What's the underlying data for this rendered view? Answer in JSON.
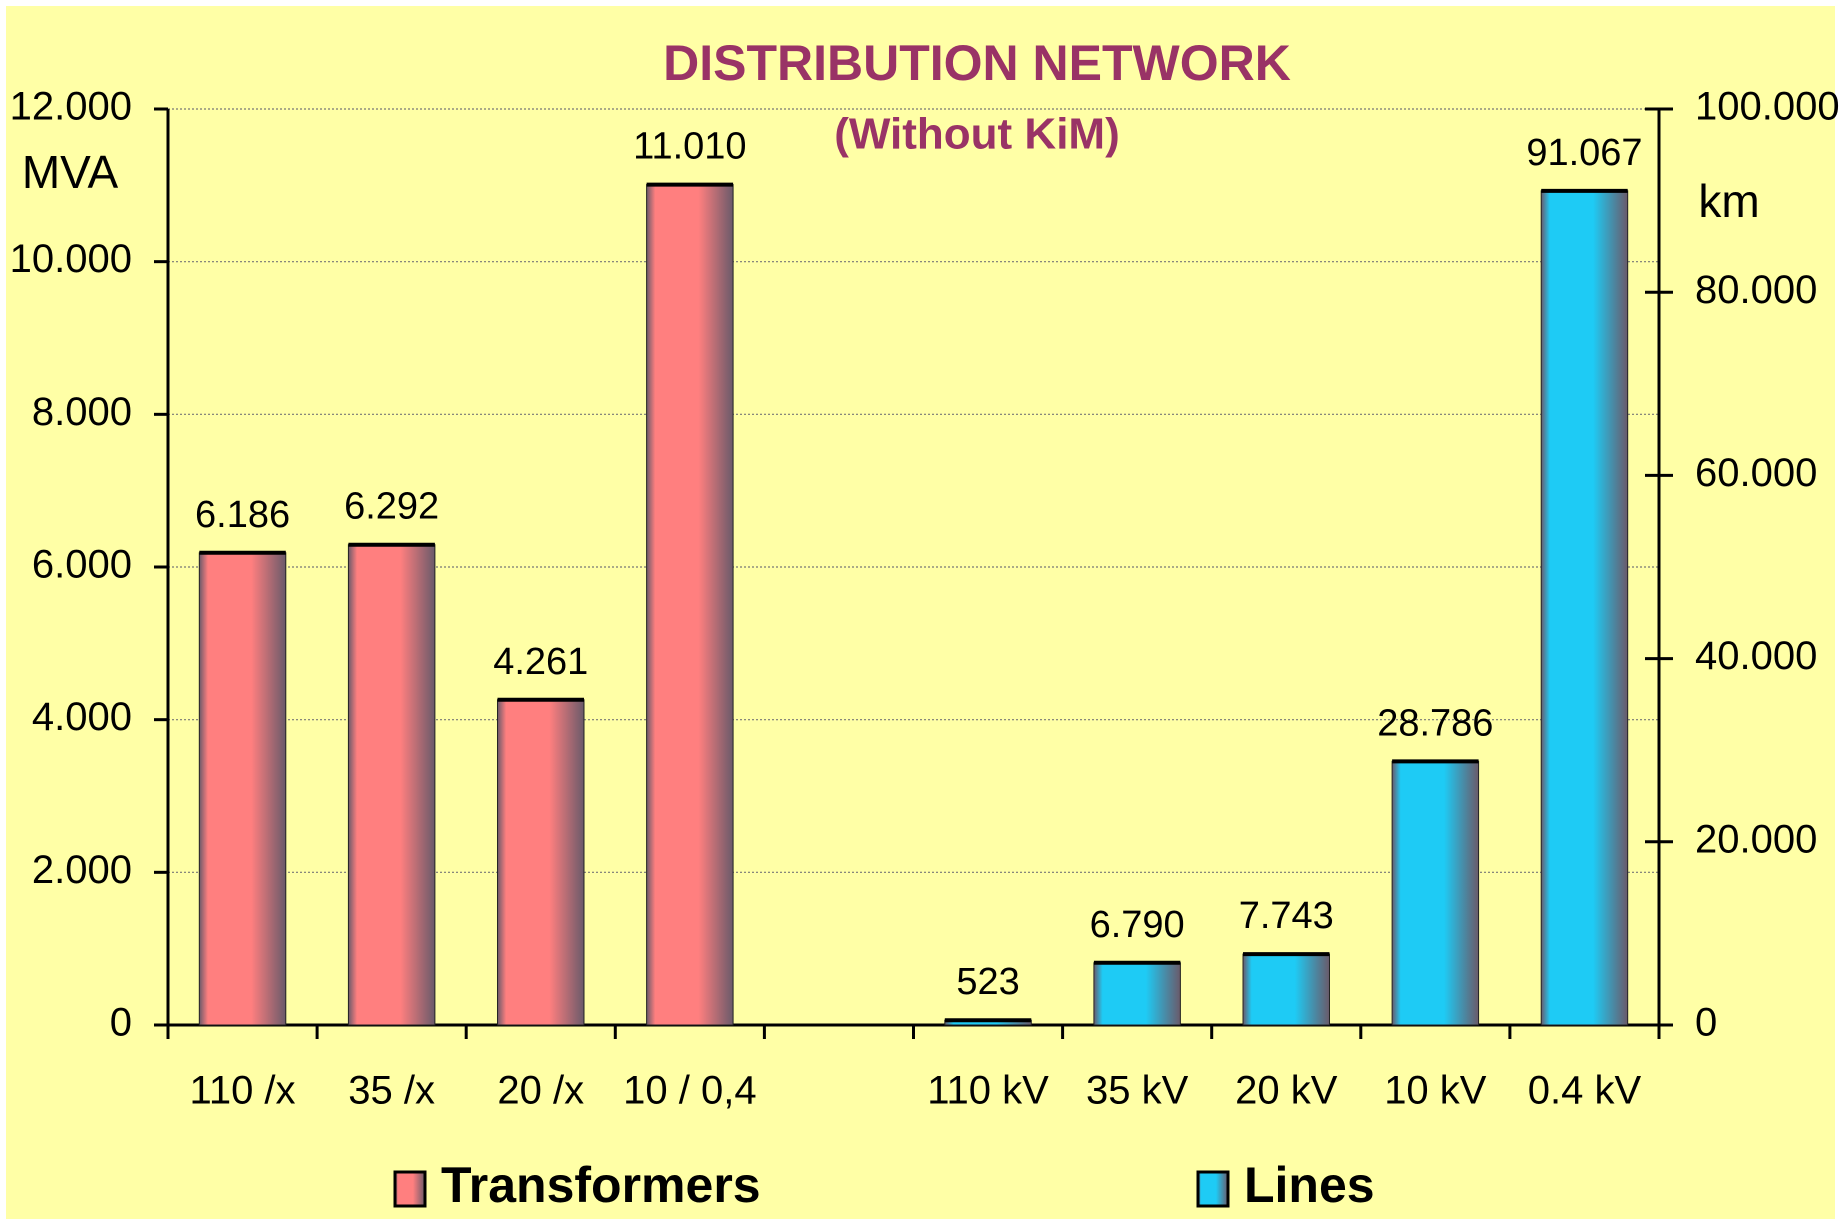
{
  "chart_data": {
    "type": "bar",
    "title": "DISTRIBUTION NETWORK",
    "subtitle": "(Without KiM)",
    "y_axis_label": "MVA",
    "y2_axis_label": "km",
    "categories": [
      "110 /x",
      "35 /x",
      "20 /x",
      "10 / 0,4",
      null,
      "110 kV",
      "35 kV",
      "20 kV",
      "10 kV",
      "0.4 kV"
    ],
    "series": [
      {
        "name": "Transformers",
        "color": "#ff7f7f",
        "axis": "y",
        "values": [
          6186,
          6292,
          4261,
          11010,
          null,
          null,
          null,
          null,
          null,
          null
        ],
        "value_labels": [
          "6.186",
          "6.292",
          "4.261",
          "11.010",
          null,
          null,
          null,
          null,
          null,
          null
        ]
      },
      {
        "name": "Lines",
        "color": "#1ecbf5",
        "axis": "y2",
        "values": [
          null,
          null,
          null,
          null,
          null,
          523,
          6790,
          7743,
          28786,
          91067
        ],
        "value_labels": [
          null,
          null,
          null,
          null,
          null,
          "523",
          "6.790",
          "7.743",
          "28.786",
          "91.067"
        ]
      }
    ],
    "ylim": [
      0,
      12000
    ],
    "yticks": [
      0,
      {
        "value": 2000,
        "label": "2.000"
      },
      {
        "value": 4000,
        "label": "4.000"
      },
      {
        "value": 6000,
        "label": "6.000"
      },
      {
        "value": 8000,
        "label": "8.000"
      },
      {
        "value": 10000,
        "label": "10.000"
      },
      {
        "value": 12000,
        "label": "12.000"
      }
    ],
    "y2lim": [
      0,
      100000
    ],
    "y2ticks": [
      0,
      {
        "value": 20000,
        "label": "20.000"
      },
      {
        "value": 40000,
        "label": "40.000"
      },
      {
        "value": 60000,
        "label": "60.000"
      },
      {
        "value": 80000,
        "label": "80.000"
      },
      {
        "value": 100000,
        "label": "100.000"
      }
    ],
    "grid": true,
    "legend": "bottom"
  }
}
